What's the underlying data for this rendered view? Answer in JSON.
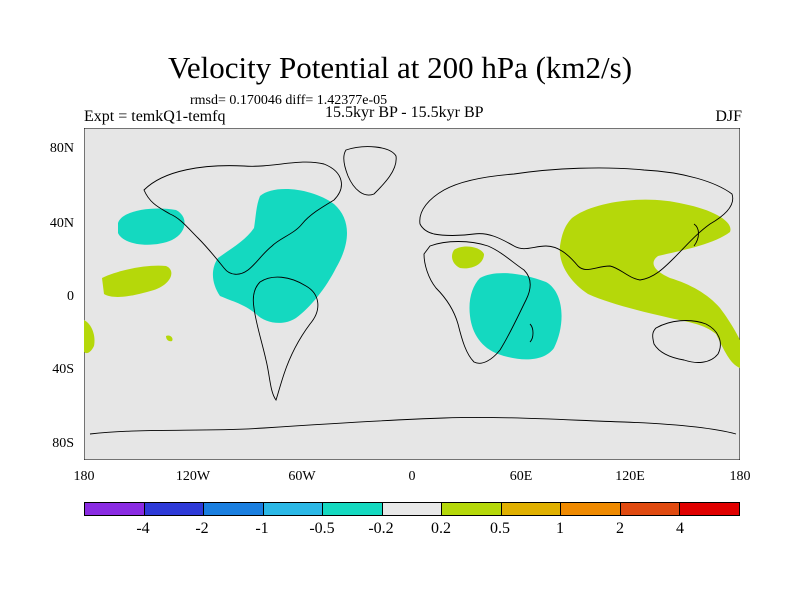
{
  "title": "Velocity Potential at 200 hPa (km2/s)",
  "stats": "rmsd= 0.170046 diff= 1.42377e-05",
  "experiment": "Expt = temkQ1-temfq",
  "period": "15.5kyr BP - 15.5kyr BP",
  "season": "DJF",
  "lat_labels": [
    "80N",
    "40N",
    "0",
    "40S",
    "80S"
  ],
  "lon_labels": [
    "180",
    "120W",
    "60W",
    "0",
    "60E",
    "120E",
    "180"
  ],
  "colorbar": {
    "colors": [
      "#8a2be2",
      "#2e3ad8",
      "#1a7fe0",
      "#2bb8e6",
      "#14d9c0",
      "#e8e8e8",
      "#b5d80a",
      "#e0b000",
      "#ef8a00",
      "#e04a10",
      "#e00000"
    ],
    "labels": [
      "-4",
      "-2",
      "-1",
      "-0.5",
      "-0.2",
      "0.2",
      "0.5",
      "1",
      "2",
      "4"
    ]
  },
  "colors": {
    "ocean": "#e6e6e6",
    "negative": "#14d9c0",
    "positive": "#b5d80a"
  }
}
